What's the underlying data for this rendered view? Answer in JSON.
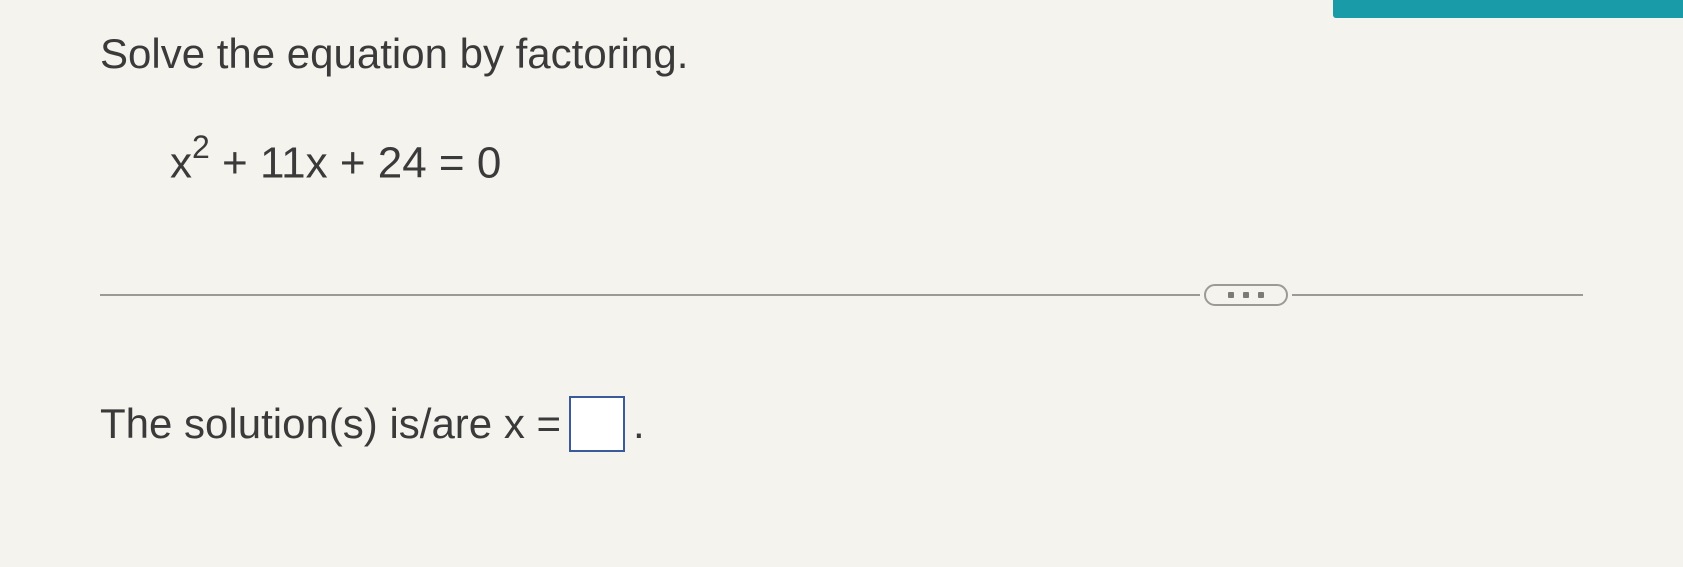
{
  "header": {
    "accent_color": "#1a9ba8"
  },
  "problem": {
    "instruction": "Solve the equation by factoring.",
    "equation_base1": "x",
    "equation_exp": "2",
    "equation_rest": " + 11x + 24 = 0"
  },
  "answer": {
    "prompt": "The solution(s) is/are x = ",
    "value": "",
    "period": "."
  },
  "styling": {
    "background_color": "#f5f3ee",
    "text_color": "#3a3a3a",
    "divider_color": "#9a9a96",
    "input_border_color": "#3a5a9a",
    "instruction_fontsize": 42,
    "equation_fontsize": 44,
    "answer_fontsize": 42
  }
}
